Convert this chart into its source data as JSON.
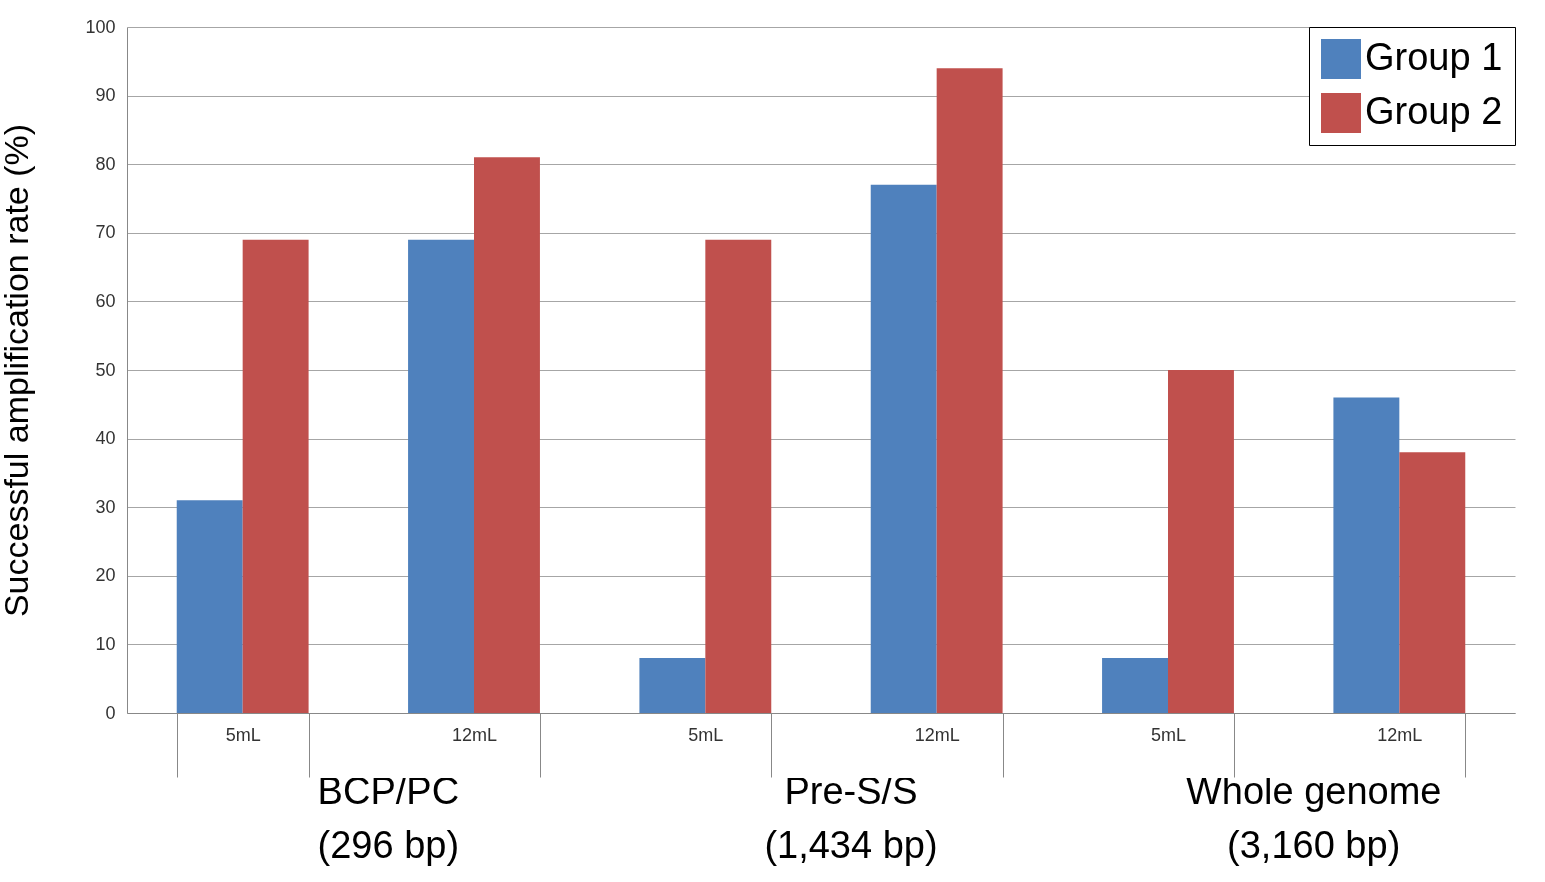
{
  "chart_data": {
    "type": "bar",
    "ylabel": "Successful amplification rate (%)",
    "categories": [
      "5mL",
      "12mL",
      "5mL",
      "12mL",
      "5mL",
      "12mL"
    ],
    "series": [
      {
        "name": "Group 1",
        "color": "#4f81bd",
        "values": [
          31,
          69,
          8,
          77,
          8,
          46
        ]
      },
      {
        "name": "Group 2",
        "color": "#c0504d",
        "values": [
          69,
          81,
          69,
          94,
          50,
          38
        ]
      }
    ],
    "ylim": [
      0,
      100
    ],
    "yticks": [
      0,
      10,
      20,
      30,
      40,
      50,
      60,
      70,
      80,
      90,
      100
    ],
    "grid": "y",
    "legend": "top right",
    "annotations": [
      "BCP/PC\n(296 bp)",
      "Pre-S/S\n(1,434 bp)",
      "Whole genome\n(3,160 bp)"
    ]
  }
}
